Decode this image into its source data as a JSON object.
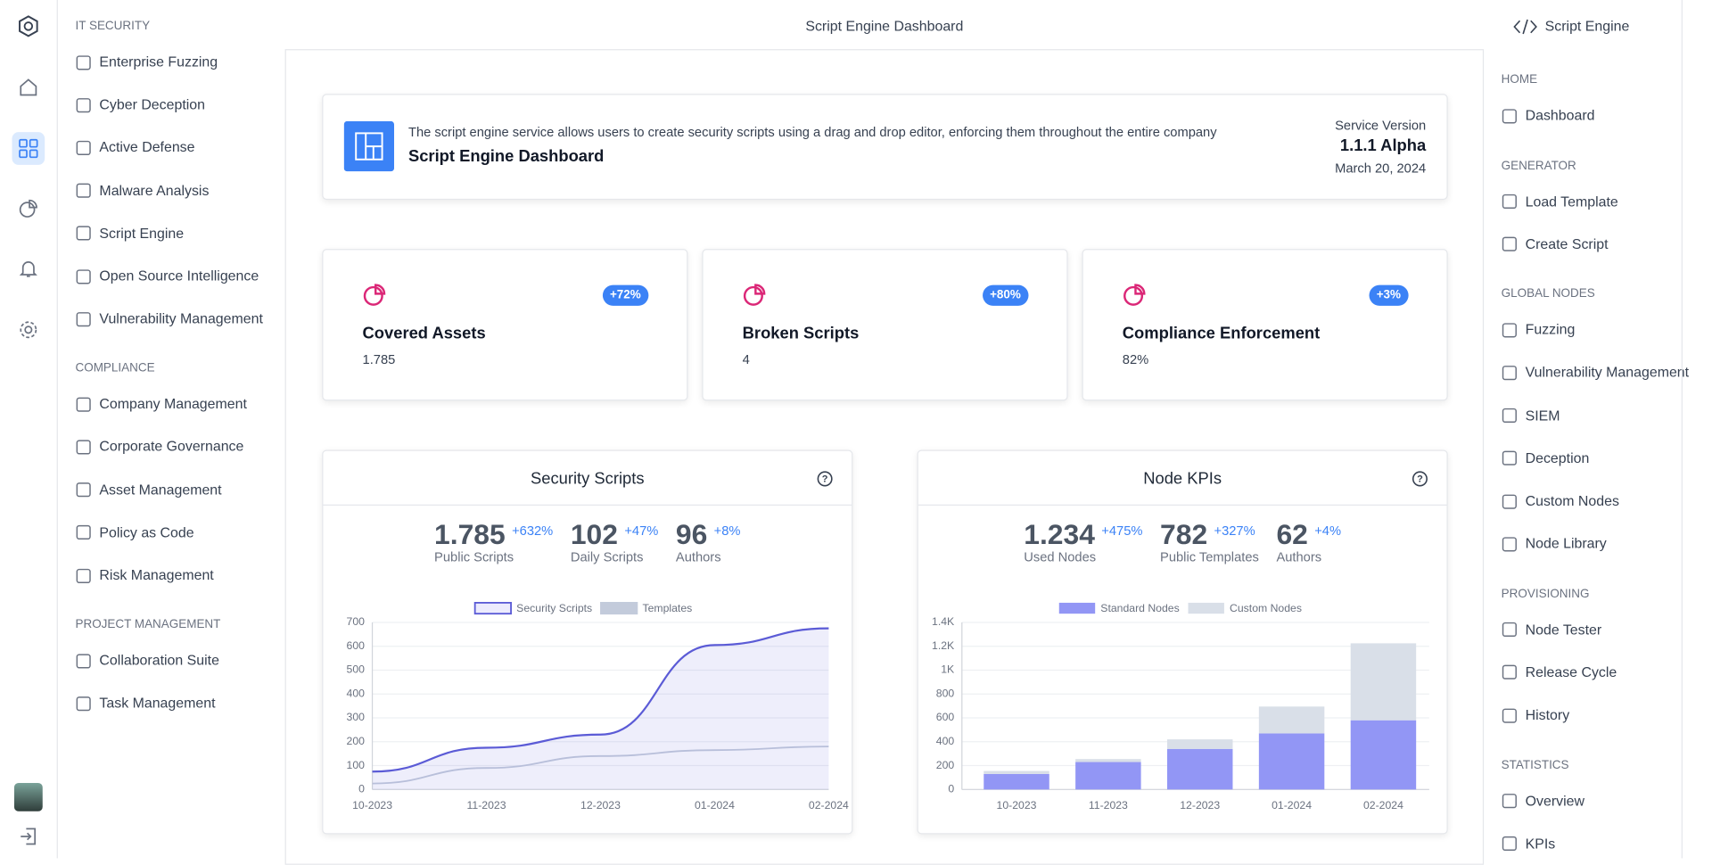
{
  "header": {
    "title": "Script Engine Dashboard"
  },
  "sidebar": {
    "sections": [
      {
        "title": "IT SECURITY",
        "items": [
          "Enterprise Fuzzing",
          "Cyber Deception",
          "Active Defense",
          "Malware Analysis",
          "Script Engine",
          "Open Source Intelligence",
          "Vulnerability Management"
        ]
      },
      {
        "title": "COMPLIANCE",
        "items": [
          "Company Management",
          "Corporate Governance",
          "Asset Management",
          "Policy as Code",
          "Risk Management"
        ]
      },
      {
        "title": "PROJECT MANAGEMENT",
        "items": [
          "Collaboration Suite",
          "Task Management"
        ]
      }
    ]
  },
  "right_nav": {
    "title": "Script Engine",
    "sections": [
      {
        "title": "HOME",
        "items": [
          "Dashboard"
        ]
      },
      {
        "title": "GENERATOR",
        "items": [
          "Load Template",
          "Create Script"
        ]
      },
      {
        "title": "GLOBAL NODES",
        "items": [
          "Fuzzing",
          "Vulnerability Management",
          "SIEM",
          "Deception",
          "Custom Nodes",
          "Node Library"
        ]
      },
      {
        "title": "PROVISIONING",
        "items": [
          "Node Tester",
          "Release Cycle",
          "History"
        ]
      },
      {
        "title": "STATISTICS",
        "items": [
          "Overview",
          "KPIs"
        ]
      }
    ]
  },
  "banner": {
    "description": "The script engine service allows users to create security scripts using a drag and drop editor, enforcing them throughout the entire company",
    "title": "Script Engine Dashboard",
    "version_label": "Service Version",
    "version": "1.1.1 Alpha",
    "date": "March 20, 2024"
  },
  "stats": [
    {
      "title": "Covered Assets",
      "value": "1.785",
      "badge": "+72%"
    },
    {
      "title": "Broken Scripts",
      "value": "4",
      "badge": "+80%"
    },
    {
      "title": "Compliance Enforcement",
      "value": "82%",
      "badge": "+3%"
    }
  ],
  "chart_data": [
    {
      "type": "line",
      "title": "Security Scripts",
      "kpis": [
        {
          "value": "1.785",
          "change": "+632%",
          "label": "Public Scripts"
        },
        {
          "value": "102",
          "change": "+47%",
          "label": "Daily Scripts"
        },
        {
          "value": "96",
          "change": "+8%",
          "label": "Authors"
        }
      ],
      "categories": [
        "10-2023",
        "11-2023",
        "12-2023",
        "01-2024",
        "02-2024"
      ],
      "series": [
        {
          "name": "Security Scripts",
          "color": "#5b5bd6",
          "values": [
            75,
            175,
            230,
            605,
            675
          ]
        },
        {
          "name": "Templates",
          "color": "#c3cbdb",
          "values": [
            25,
            90,
            140,
            165,
            180
          ]
        }
      ],
      "ylim": [
        0,
        700
      ],
      "yticks": [
        0,
        100,
        200,
        300,
        400,
        500,
        600,
        700
      ],
      "grid": true
    },
    {
      "type": "bar",
      "stacked": true,
      "title": "Node KPIs",
      "kpis": [
        {
          "value": "1.234",
          "change": "+475%",
          "label": "Used Nodes"
        },
        {
          "value": "782",
          "change": "+327%",
          "label": "Public Templates"
        },
        {
          "value": "62",
          "change": "+4%",
          "label": "Authors"
        }
      ],
      "categories": [
        "10-2023",
        "11-2023",
        "12-2023",
        "01-2024",
        "02-2024"
      ],
      "series": [
        {
          "name": "Standard Nodes",
          "color": "#9296f5",
          "values": [
            130,
            230,
            340,
            470,
            580
          ]
        },
        {
          "name": "Custom Nodes",
          "color": "#d9dfe8",
          "values": [
            25,
            25,
            80,
            225,
            645
          ]
        }
      ],
      "ylim": [
        0,
        1400
      ],
      "yticks": [
        0,
        200,
        400,
        600,
        800,
        {
          "value": 1000,
          "label": "1K"
        },
        {
          "value": 1200,
          "label": "1.2K"
        },
        {
          "value": 1400,
          "label": "1.4K"
        }
      ],
      "grid": true
    }
  ]
}
